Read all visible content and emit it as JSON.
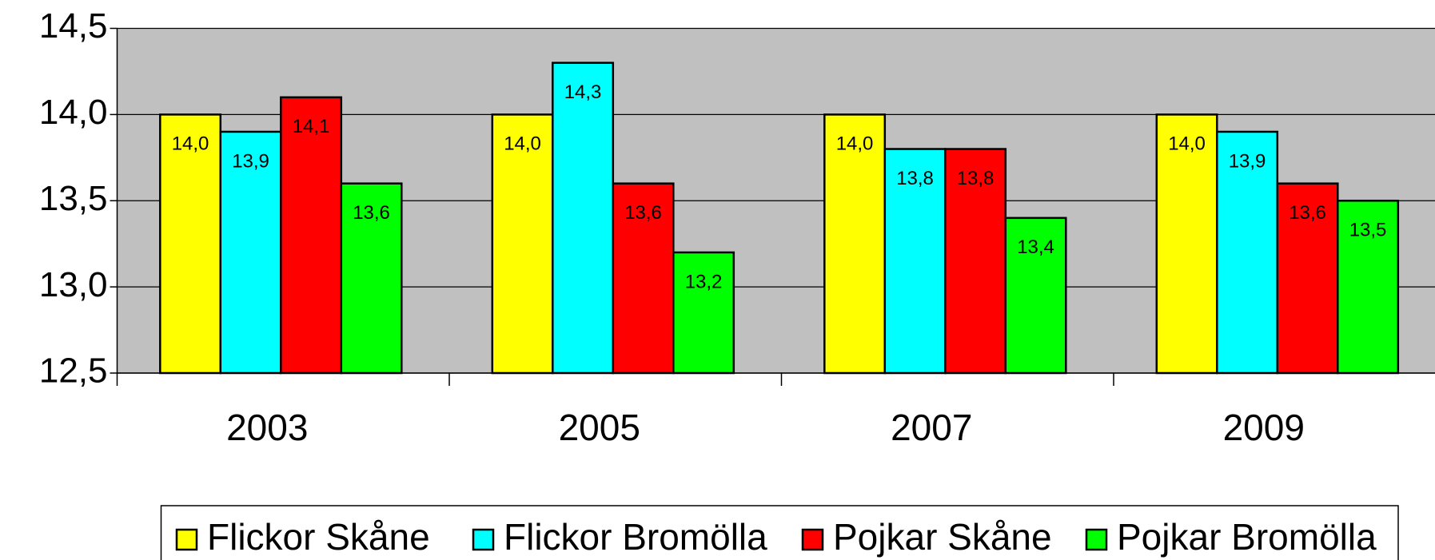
{
  "chart_data": {
    "type": "bar",
    "categories": [
      "2003",
      "2005",
      "2007",
      "2009"
    ],
    "series": [
      {
        "name": "Flickor Skåne",
        "color": "#ffff00",
        "values": [
          14.0,
          14.0,
          14.0,
          14.0
        ],
        "value_labels": [
          "14,0",
          "14,0",
          "14,0",
          "14,0"
        ]
      },
      {
        "name": "Flickor Bromölla",
        "color": "#00ffff",
        "values": [
          13.9,
          14.3,
          13.8,
          13.9
        ],
        "value_labels": [
          "13,9",
          "14,3",
          "13,8",
          "13,9"
        ]
      },
      {
        "name": "Pojkar Skåne",
        "color": "#ff0000",
        "values": [
          14.1,
          13.6,
          13.8,
          13.6
        ],
        "value_labels": [
          "14,1",
          "13,6",
          "13,8",
          "13,6"
        ]
      },
      {
        "name": "Pojkar Bromölla",
        "color": "#00ff00",
        "values": [
          13.6,
          13.2,
          13.4,
          13.5
        ],
        "value_labels": [
          "13,6",
          "13,2",
          "13,4",
          "13,5"
        ]
      }
    ],
    "ylim": [
      12.5,
      14.5
    ],
    "yticks": [
      {
        "value": 12.5,
        "label": "12,5"
      },
      {
        "value": 13.0,
        "label": "13,0"
      },
      {
        "value": 13.5,
        "label": "13,5"
      },
      {
        "value": 14.0,
        "label": "14,0"
      },
      {
        "value": 14.5,
        "label": "14,5"
      }
    ],
    "grid": true,
    "legend": "bottom"
  }
}
